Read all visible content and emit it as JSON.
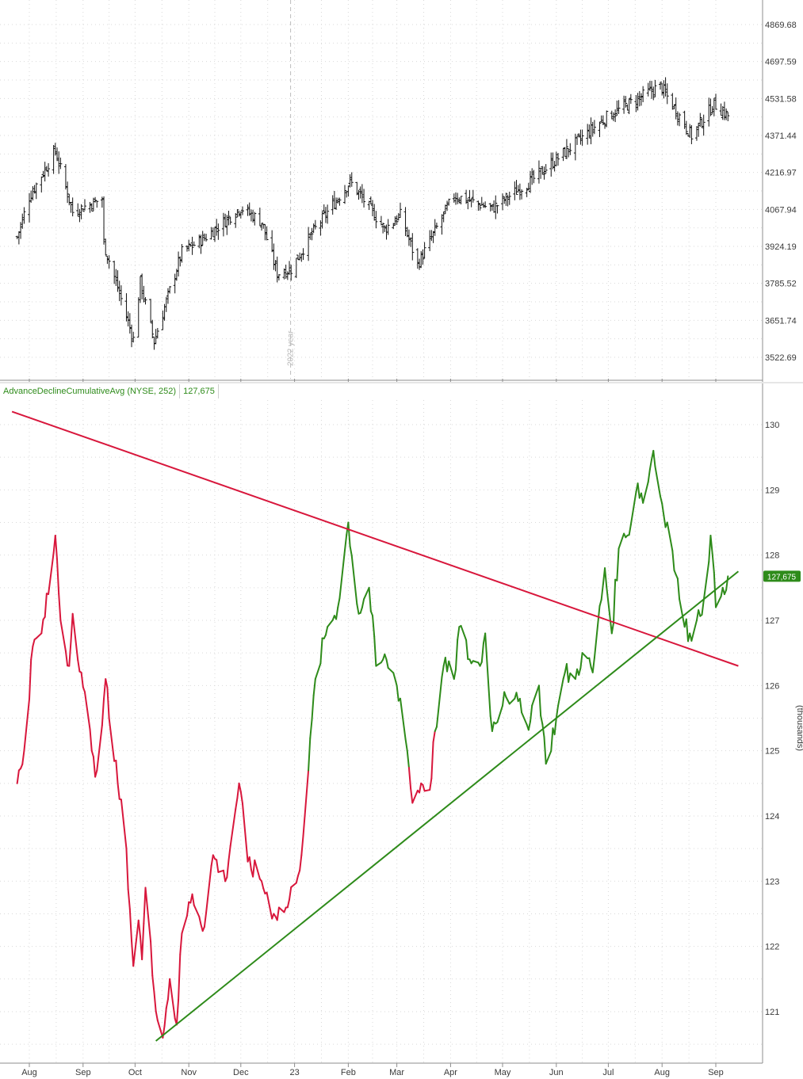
{
  "legend": {
    "indicator_label": "AdvanceDeclineCumulativeAvg (NYSE, 252)",
    "indicator_value": "127,675"
  },
  "year_marker": "2022 year",
  "units_label": "(thousands)",
  "last_value_badge": "127,675",
  "colors": {
    "up_line": "#2e8b1a",
    "down_line": "#d8173c",
    "resistance": "#d8173c",
    "support": "#2e8b1a",
    "bars": "#111111",
    "grid": "#d9d9d9",
    "badge": "#2e8b1a"
  },
  "chart_data": [
    {
      "type": "ohlc",
      "name": "price",
      "y_ticks": [
        "4869.68",
        "4697.59",
        "4531.58",
        "4371.44",
        "4216.97",
        "4067.94",
        "3924.19",
        "3785.52",
        "3651.74",
        "3522.69"
      ],
      "ylim": [
        3470,
        4950
      ],
      "scale": "log",
      "x_months": [
        "Aug",
        "Sep",
        "Oct",
        "Nov",
        "Dec",
        "23",
        "Feb",
        "Mar",
        "Apr",
        "May",
        "Jun",
        "Jul",
        "Aug",
        "Sep"
      ],
      "close_keypoints": [
        [
          "2022-07-25",
          3960
        ],
        [
          "2022-08-01",
          4118
        ],
        [
          "2022-08-16",
          4305
        ],
        [
          "2022-08-26",
          4058
        ],
        [
          "2022-09-12",
          4110
        ],
        [
          "2022-09-13",
          3932
        ],
        [
          "2022-09-30",
          3585
        ],
        [
          "2022-10-04",
          3790
        ],
        [
          "2022-10-12",
          3577
        ],
        [
          "2022-10-28",
          3901
        ],
        [
          "2022-11-10",
          3956
        ],
        [
          "2022-12-01",
          4076
        ],
        [
          "2022-12-13",
          4019
        ],
        [
          "2022-12-22",
          3822
        ],
        [
          "2022-12-30",
          3839
        ],
        [
          "2023-01-12",
          3983
        ],
        [
          "2023-02-02",
          4179
        ],
        [
          "2023-02-22",
          3991
        ],
        [
          "2023-03-03",
          4045
        ],
        [
          "2023-03-13",
          3855
        ],
        [
          "2023-04-03",
          4124
        ],
        [
          "2023-04-25",
          4071
        ],
        [
          "2023-05-19",
          4191
        ],
        [
          "2023-06-12",
          4338
        ],
        [
          "2023-06-20",
          4388
        ],
        [
          "2023-06-30",
          4450
        ],
        [
          "2023-07-31",
          4588
        ],
        [
          "2023-08-18",
          4370
        ],
        [
          "2023-08-31",
          4508
        ],
        [
          "2023-09-08",
          4457
        ]
      ]
    },
    {
      "type": "line",
      "name": "AdvanceDeclineCumulativeAvg (NYSE, 252)",
      "y_ticks": [
        "130",
        "129",
        "128",
        "127",
        "126",
        "125",
        "124",
        "123",
        "122",
        "121"
      ],
      "ylim": [
        120.2,
        130.4
      ],
      "x_months": [
        "Aug",
        "Sep",
        "Oct",
        "Nov",
        "Dec",
        "23",
        "Feb",
        "Mar",
        "Apr",
        "May",
        "Jun",
        "Jul",
        "Aug",
        "Sep"
      ],
      "keypoints": [
        [
          "2022-07-25",
          124.5
        ],
        [
          "2022-07-29",
          125.0
        ],
        [
          "2022-08-03",
          126.6
        ],
        [
          "2022-08-08",
          126.8
        ],
        [
          "2022-08-12",
          127.4
        ],
        [
          "2022-08-16",
          128.3
        ],
        [
          "2022-08-19",
          127.0
        ],
        [
          "2022-08-24",
          126.3
        ],
        [
          "2022-08-26",
          127.1
        ],
        [
          "2022-08-31",
          126.2
        ],
        [
          "2022-09-06",
          125.0
        ],
        [
          "2022-09-08",
          124.6
        ],
        [
          "2022-09-13",
          125.8
        ],
        [
          "2022-09-14",
          126.1
        ],
        [
          "2022-09-16",
          125.5
        ],
        [
          "2022-09-21",
          124.5
        ],
        [
          "2022-09-26",
          123.5
        ],
        [
          "2022-09-30",
          121.7
        ],
        [
          "2022-10-03",
          122.4
        ],
        [
          "2022-10-05",
          121.8
        ],
        [
          "2022-10-07",
          122.9
        ],
        [
          "2022-10-12",
          121.3
        ],
        [
          "2022-10-17",
          120.6
        ],
        [
          "2022-10-21",
          121.5
        ],
        [
          "2022-10-25",
          120.8
        ],
        [
          "2022-10-28",
          122.2
        ],
        [
          "2022-11-03",
          122.8
        ],
        [
          "2022-11-10",
          122.3
        ],
        [
          "2022-11-15",
          123.4
        ],
        [
          "2022-11-22",
          123.0
        ],
        [
          "2022-11-30",
          124.5
        ],
        [
          "2022-12-05",
          123.3
        ],
        [
          "2022-12-13",
          123.0
        ],
        [
          "2022-12-20",
          122.5
        ],
        [
          "2022-12-28",
          122.6
        ],
        [
          "2023-01-05",
          123.4
        ],
        [
          "2023-01-09",
          124.7
        ],
        [
          "2023-01-13",
          126.1
        ],
        [
          "2023-01-20",
          126.9
        ],
        [
          "2023-01-26",
          127.2
        ],
        [
          "2023-02-01",
          128.5
        ],
        [
          "2023-02-07",
          127.1
        ],
        [
          "2023-02-13",
          127.5
        ],
        [
          "2023-02-17",
          126.3
        ],
        [
          "2023-02-23",
          126.4
        ],
        [
          "2023-02-28",
          126.1
        ],
        [
          "2023-03-03",
          125.8
        ],
        [
          "2023-03-07",
          125.0
        ],
        [
          "2023-03-10",
          124.2
        ],
        [
          "2023-03-15",
          124.5
        ],
        [
          "2023-03-20",
          124.4
        ],
        [
          "2023-03-23",
          125.3
        ],
        [
          "2023-03-28",
          126.3
        ],
        [
          "2023-04-03",
          126.1
        ],
        [
          "2023-04-06",
          126.9
        ],
        [
          "2023-04-12",
          126.4
        ],
        [
          "2023-04-18",
          126.3
        ],
        [
          "2023-04-21",
          126.8
        ],
        [
          "2023-04-25",
          125.3
        ],
        [
          "2023-05-02",
          125.9
        ],
        [
          "2023-05-08",
          125.8
        ],
        [
          "2023-05-15",
          125.4
        ],
        [
          "2023-05-22",
          126.0
        ],
        [
          "2023-05-26",
          124.8
        ],
        [
          "2023-06-01",
          125.5
        ],
        [
          "2023-06-06",
          126.2
        ],
        [
          "2023-06-12",
          126.1
        ],
        [
          "2023-06-16",
          126.5
        ],
        [
          "2023-06-22",
          126.2
        ],
        [
          "2023-06-29",
          127.8
        ],
        [
          "2023-07-03",
          126.8
        ],
        [
          "2023-07-07",
          128.1
        ],
        [
          "2023-07-12",
          128.3
        ],
        [
          "2023-07-18",
          129.1
        ],
        [
          "2023-07-21",
          128.8
        ],
        [
          "2023-07-27",
          129.6
        ],
        [
          "2023-07-31",
          128.9
        ],
        [
          "2023-08-04",
          128.5
        ],
        [
          "2023-08-09",
          127.7
        ],
        [
          "2023-08-14",
          126.9
        ],
        [
          "2023-08-17",
          126.8
        ],
        [
          "2023-08-21",
          127.0
        ],
        [
          "2023-08-25",
          127.3
        ],
        [
          "2023-08-29",
          128.3
        ],
        [
          "2023-09-01",
          127.2
        ],
        [
          "2023-09-05",
          127.5
        ],
        [
          "2023-09-08",
          127.675
        ]
      ],
      "resistance_line": [
        [
          "2022-07-22",
          130.2
        ],
        [
          "2023-09-14",
          126.3
        ]
      ],
      "support_line": [
        [
          "2022-10-13",
          120.55
        ],
        [
          "2023-09-14",
          127.75
        ]
      ]
    }
  ]
}
